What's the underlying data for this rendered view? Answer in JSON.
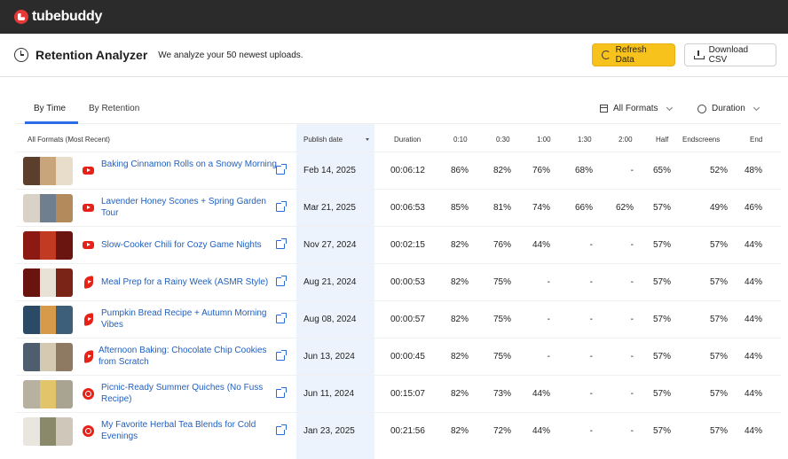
{
  "app": {
    "logo_text": "tubebuddy"
  },
  "header": {
    "title": "Retention Analyzer",
    "subtitle": "We analyze your 50 newest uploads.",
    "refresh_label": "Refresh Data",
    "download_label": "Download CSV"
  },
  "tabs": [
    {
      "label": "By Time",
      "active": true
    },
    {
      "label": "By Retention",
      "active": false
    }
  ],
  "filters": {
    "formats": "All Formats",
    "duration": "Duration"
  },
  "table": {
    "columns": {
      "video": "All Formats (Most Recent)",
      "publish_date": "Publish date",
      "duration": "Duration",
      "t0_10": "0:10",
      "t0_30": "0:30",
      "t1_00": "1:00",
      "t1_30": "1:30",
      "t2_00": "2:00",
      "half": "Half",
      "endscreens": "Endscreens",
      "end": "End"
    },
    "rows": [
      {
        "title": "Baking Cinnamon Rolls on a Snowy Morning",
        "platform": "youtube-icon",
        "publish_date": "Feb 14, 2025",
        "duration": "00:06:12",
        "t0_10": "86%",
        "t0_30": "82%",
        "t1_00": "76%",
        "t1_30": "68%",
        "t2_00": "-",
        "half": "65%",
        "endscreens": "52%",
        "end": "48%"
      },
      {
        "title": "Lavender Honey Scones + Spring Garden Tour",
        "platform": "youtube-icon",
        "publish_date": "Mar 21, 2025",
        "duration": "00:06:53",
        "t0_10": "85%",
        "t0_30": "81%",
        "t1_00": "74%",
        "t1_30": "66%",
        "t2_00": "62%",
        "half": "57%",
        "endscreens": "49%",
        "end": "46%"
      },
      {
        "title": "Slow-Cooker Chili for Cozy Game Nights",
        "platform": "youtube-icon",
        "publish_date": "Nov 27, 2024",
        "duration": "00:02:15",
        "t0_10": "82%",
        "t0_30": "76%",
        "t1_00": "44%",
        "t1_30": "-",
        "t2_00": "-",
        "half": "57%",
        "endscreens": "57%",
        "end": "44%"
      },
      {
        "title": "Meal Prep for a Rainy Week (ASMR Style)",
        "platform": "shorts-icon",
        "publish_date": "Aug 21, 2024",
        "duration": "00:00:53",
        "t0_10": "82%",
        "t0_30": "75%",
        "t1_00": "-",
        "t1_30": "-",
        "t2_00": "-",
        "half": "57%",
        "endscreens": "57%",
        "end": "44%"
      },
      {
        "title": "Pumpkin Bread Recipe + Autumn Morning Vibes",
        "platform": "shorts-icon",
        "publish_date": "Aug 08, 2024",
        "duration": "00:00:57",
        "t0_10": "82%",
        "t0_30": "75%",
        "t1_00": "-",
        "t1_30": "-",
        "t2_00": "-",
        "half": "57%",
        "endscreens": "57%",
        "end": "44%"
      },
      {
        "title": "Afternoon Baking: Chocolate Chip Cookies from Scratch",
        "platform": "shorts-icon",
        "publish_date": "Jun 13, 2024",
        "duration": "00:00:45",
        "t0_10": "82%",
        "t0_30": "75%",
        "t1_00": "-",
        "t1_30": "-",
        "t2_00": "-",
        "half": "57%",
        "endscreens": "57%",
        "end": "44%"
      },
      {
        "title": "Picnic-Ready Summer Quiches (No Fuss Recipe)",
        "platform": "live-icon",
        "publish_date": "Jun 11, 2024",
        "duration": "00:15:07",
        "t0_10": "82%",
        "t0_30": "73%",
        "t1_00": "44%",
        "t1_30": "-",
        "t2_00": "-",
        "half": "57%",
        "endscreens": "57%",
        "end": "44%"
      },
      {
        "title": "My Favorite Herbal Tea Blends for Cold Evenings",
        "platform": "live-icon",
        "publish_date": "Jan 23, 2025",
        "duration": "00:21:56",
        "t0_10": "82%",
        "t0_30": "72%",
        "t1_00": "44%",
        "t1_30": "-",
        "t2_00": "-",
        "half": "57%",
        "endscreens": "57%",
        "end": "44%"
      }
    ]
  },
  "colors": {
    "accent": "#f7c21c",
    "link": "#1f5fbf",
    "topbar": "#2b2b2b",
    "tab_underline": "#2d6ee8",
    "youtube_red": "#e62117"
  }
}
